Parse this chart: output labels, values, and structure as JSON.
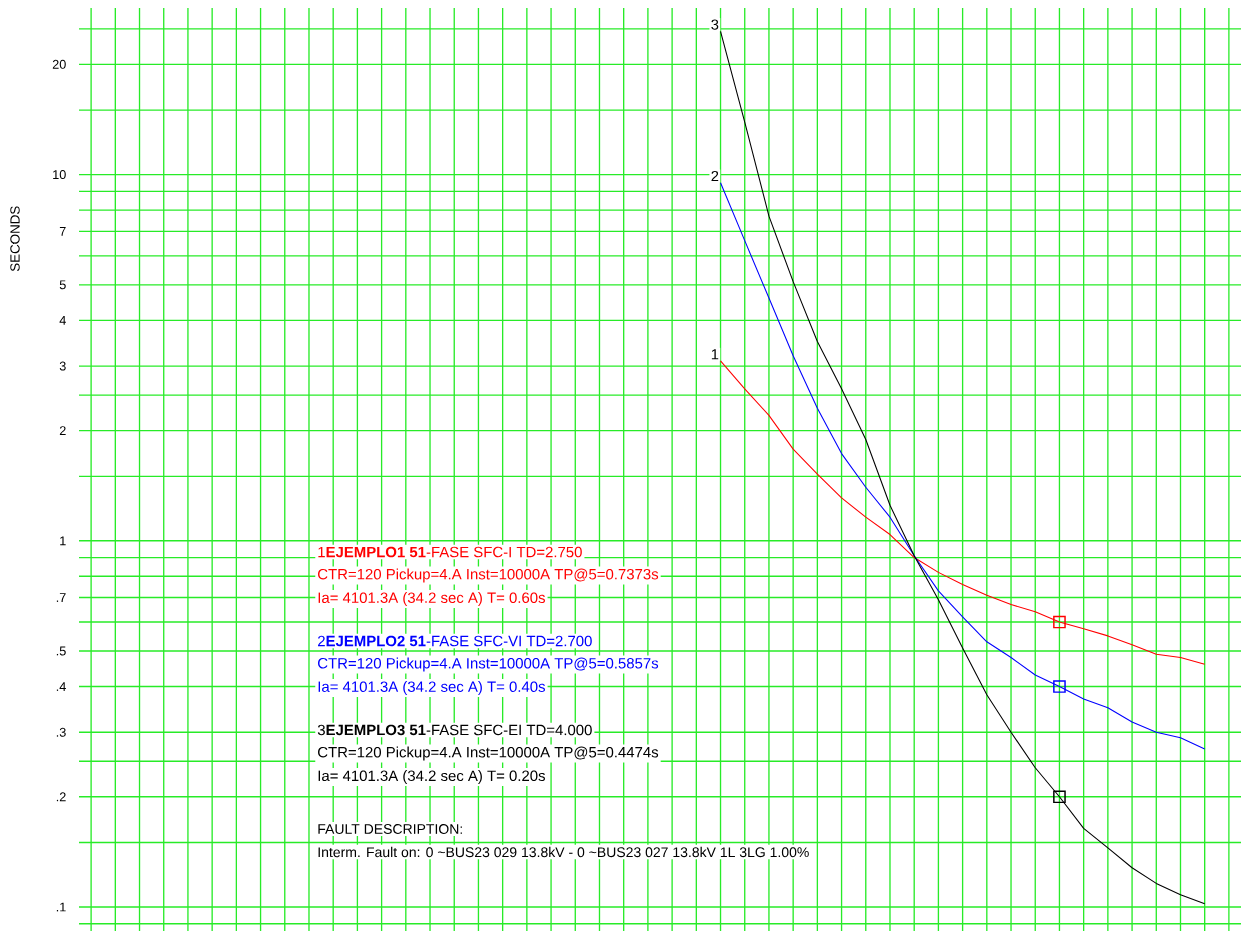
{
  "chart_data": {
    "type": "line",
    "ylabel": "SECONDS",
    "log": "y",
    "grid": true,
    "tick_labels": "y",
    "categories": [
      null,
      null,
      null,
      null,
      null,
      null,
      null,
      null,
      null,
      null,
      null,
      null,
      null,
      null,
      null,
      null,
      null,
      null,
      null,
      null,
      null,
      null,
      null,
      null,
      null,
      null,
      null,
      null,
      null,
      null,
      null,
      null,
      null,
      null,
      null,
      null,
      null,
      null,
      null,
      null,
      null,
      null,
      null,
      null,
      null,
      null,
      null,
      null
    ],
    "ylim": [
      0.086,
      28.5
    ],
    "yticks": [
      {
        "value": 25,
        "label": null
      },
      {
        "value": 20,
        "label": "20"
      },
      {
        "value": 15,
        "label": null
      },
      {
        "value": 10,
        "label": "10"
      },
      {
        "value": 9,
        "label": null
      },
      {
        "value": 8,
        "label": null
      },
      {
        "value": 7,
        "label": "7"
      },
      {
        "value": 6,
        "label": null
      },
      {
        "value": 5,
        "label": "5"
      },
      {
        "value": 4,
        "label": "4"
      },
      {
        "value": 3,
        "label": "3"
      },
      {
        "value": 2.5,
        "label": null
      },
      {
        "value": 2,
        "label": "2"
      },
      {
        "value": 1.5,
        "label": null
      },
      {
        "value": 1,
        "label": "1"
      },
      {
        "value": 0.9,
        "label": null
      },
      {
        "value": 0.8,
        "label": null
      },
      {
        "value": 0.7,
        "label": ".7"
      },
      {
        "value": 0.6,
        "label": null
      },
      {
        "value": 0.5,
        "label": ".5"
      },
      {
        "value": 0.4,
        "label": ".4"
      },
      {
        "value": 0.3,
        "label": ".3"
      },
      {
        "value": 0.25,
        "label": null
      },
      {
        "value": 0.2,
        "label": ".2"
      },
      {
        "value": 0.15,
        "label": null
      },
      {
        "value": 0.1,
        "label": ".1"
      },
      {
        "value": 0.09,
        "label": null
      }
    ],
    "series": [
      {
        "name": "1",
        "marker": "none",
        "color": "#ff0000",
        "values": [
          null,
          null,
          null,
          null,
          null,
          null,
          null,
          null,
          null,
          null,
          null,
          null,
          null,
          null,
          null,
          null,
          null,
          null,
          null,
          null,
          null,
          null,
          null,
          null,
          null,
          null,
          3.1,
          2.6,
          2.2,
          1.78,
          1.52,
          1.31,
          1.16,
          1.04,
          0.9,
          0.82,
          0.76,
          0.71,
          0.67,
          0.64,
          0.6,
          0.575,
          0.55,
          0.52,
          0.49,
          0.48,
          0.46,
          null
        ]
      },
      {
        "name": "2",
        "marker": "none",
        "color": "#0000ff",
        "values": [
          null,
          null,
          null,
          null,
          null,
          null,
          null,
          null,
          null,
          null,
          null,
          null,
          null,
          null,
          null,
          null,
          null,
          null,
          null,
          null,
          null,
          null,
          null,
          null,
          null,
          null,
          9.5,
          6.6,
          4.6,
          3.2,
          2.3,
          1.73,
          1.4,
          1.16,
          0.91,
          0.73,
          0.62,
          0.53,
          0.48,
          0.43,
          0.4,
          0.37,
          0.35,
          0.32,
          0.3,
          0.29,
          0.27,
          null
        ]
      },
      {
        "name": "3",
        "marker": "none",
        "color": "#000000",
        "values": [
          null,
          null,
          null,
          null,
          null,
          null,
          null,
          null,
          null,
          null,
          null,
          null,
          null,
          null,
          null,
          null,
          null,
          null,
          null,
          null,
          null,
          null,
          null,
          null,
          null,
          null,
          24.6,
          13.9,
          7.7,
          5.1,
          3.5,
          2.6,
          1.89,
          1.25,
          0.91,
          0.69,
          0.51,
          0.38,
          0.3,
          0.24,
          0.2,
          0.164,
          0.145,
          0.128,
          0.116,
          0.108,
          0.102,
          null
        ]
      },
      {
        "type": "scatter",
        "marker": "square",
        "color": "#ff0000",
        "values": [
          null,
          null,
          null,
          null,
          null,
          null,
          null,
          null,
          null,
          null,
          null,
          null,
          null,
          null,
          null,
          null,
          null,
          null,
          null,
          null,
          null,
          null,
          null,
          null,
          null,
          null,
          null,
          null,
          null,
          null,
          null,
          null,
          null,
          null,
          null,
          null,
          null,
          null,
          null,
          null,
          0.6,
          null,
          null,
          null,
          null,
          null,
          null,
          null
        ]
      },
      {
        "type": "scatter",
        "marker": "square",
        "color": "#0000ff",
        "values": [
          null,
          null,
          null,
          null,
          null,
          null,
          null,
          null,
          null,
          null,
          null,
          null,
          null,
          null,
          null,
          null,
          null,
          null,
          null,
          null,
          null,
          null,
          null,
          null,
          null,
          null,
          null,
          null,
          null,
          null,
          null,
          null,
          null,
          null,
          null,
          null,
          null,
          null,
          null,
          null,
          0.4,
          null,
          null,
          null,
          null,
          null,
          null,
          null
        ]
      },
      {
        "type": "scatter",
        "marker": "square",
        "color": "#000000",
        "values": [
          null,
          null,
          null,
          null,
          null,
          null,
          null,
          null,
          null,
          null,
          null,
          null,
          null,
          null,
          null,
          null,
          null,
          null,
          null,
          null,
          null,
          null,
          null,
          null,
          null,
          null,
          null,
          null,
          null,
          null,
          null,
          null,
          null,
          null,
          null,
          null,
          null,
          null,
          null,
          null,
          0.2,
          null,
          null,
          null,
          null,
          null,
          null,
          null
        ]
      }
    ],
    "annotations": [
      "1**EJEMPLO1 51**-FASE SFC-I TD=2.750",
      "CTR=120 Pickup=4.A Inst=10000A TP@5=0.7373s",
      "Ia= 4101.3A (34.2 sec A) T= 0.60s",
      "2**EJEMPLO2 51**-FASE SFC-VI TD=2.700",
      "CTR=120 Pickup=4.A Inst=10000A TP@5=0.5857s",
      "Ia= 4101.3A (34.2 sec A) T= 0.40s",
      "3**EJEMPLO3 51**-FASE SFC-EI TD=4.000",
      "CTR=120 Pickup=4.A Inst=10000A TP@5=0.4474s",
      "Ia= 4101.3A (34.2 sec A) T= 0.20s",
      "FAULT DESCRIPTION:",
      "Interm. Fault on: 0 ~BUS23 029 13.8kV - 0 ~BUS23 027 13.8kV 1L 3LG 1.00%"
    ]
  }
}
